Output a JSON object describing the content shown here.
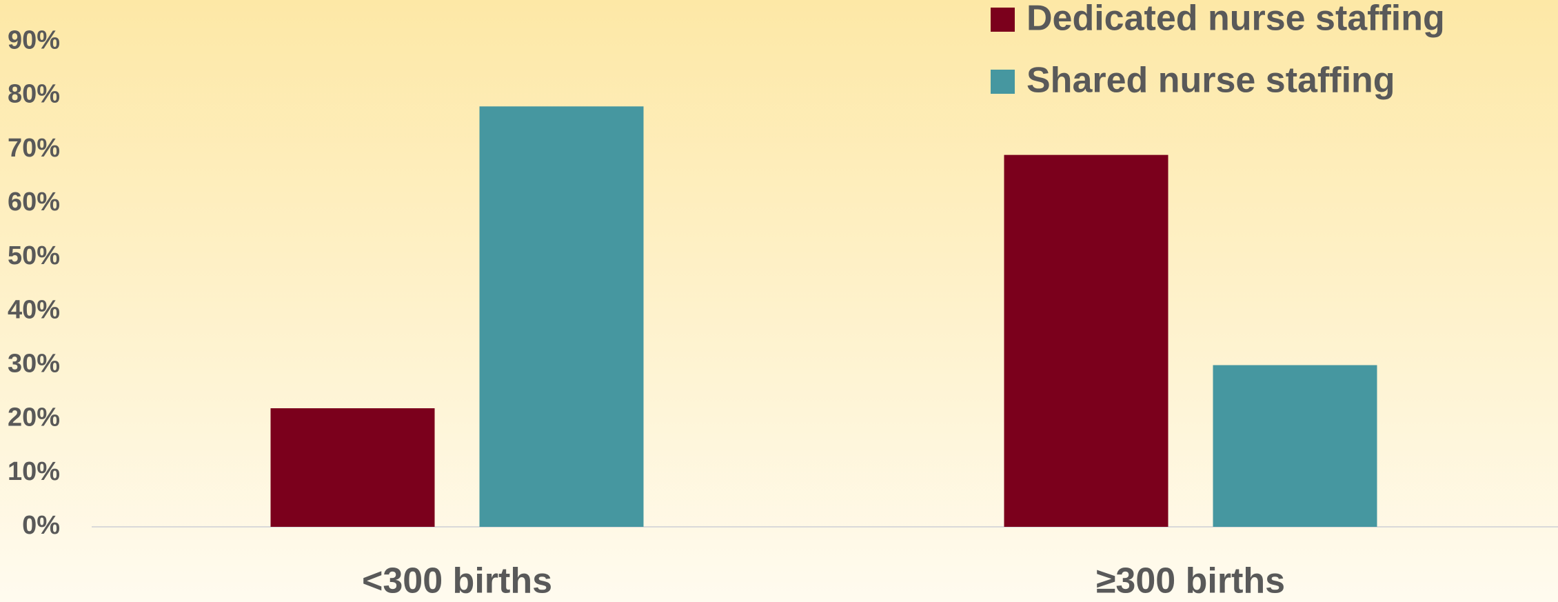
{
  "chart_data": {
    "type": "bar",
    "categories": [
      "<300 births",
      "≥300 births"
    ],
    "series": [
      {
        "name": "Dedicated nurse staffing",
        "color": "#7b001c",
        "values": [
          22,
          69
        ]
      },
      {
        "name": "Shared nurse staffing",
        "color": "#4697a0",
        "values": [
          78,
          30
        ]
      }
    ],
    "ylim": [
      0,
      90
    ],
    "yticks": [
      {
        "value": 0,
        "label": "0%"
      },
      {
        "value": 10,
        "label": "10%"
      },
      {
        "value": 20,
        "label": "20%"
      },
      {
        "value": 30,
        "label": "30%"
      },
      {
        "value": 40,
        "label": "40%"
      },
      {
        "value": 50,
        "label": "50%"
      },
      {
        "value": 60,
        "label": "60%"
      },
      {
        "value": 70,
        "label": "70%"
      },
      {
        "value": 80,
        "label": "80%"
      },
      {
        "value": 90,
        "label": "90%"
      }
    ],
    "grid": false,
    "legend": "top-right"
  }
}
